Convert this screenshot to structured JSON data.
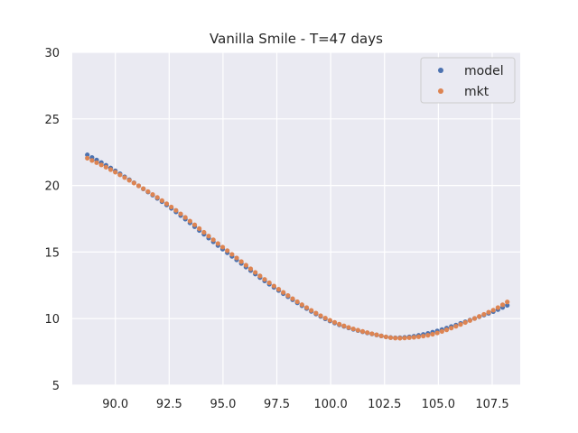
{
  "chart_data": {
    "type": "scatter",
    "title": "Vanilla Smile - T=47 days",
    "xlabel": "",
    "ylabel": "",
    "xlim": [
      88.0,
      108.8
    ],
    "ylim": [
      5,
      30
    ],
    "x_ticks": [
      90.0,
      92.5,
      95.0,
      97.5,
      100.0,
      102.5,
      105.0,
      107.5
    ],
    "x_tick_labels": [
      "90.0",
      "92.5",
      "95.0",
      "97.5",
      "100.0",
      "102.5",
      "105.0",
      "107.5"
    ],
    "y_ticks": [
      5,
      10,
      15,
      20,
      25,
      30
    ],
    "y_tick_labels": [
      "5",
      "10",
      "15",
      "20",
      "25",
      "30"
    ],
    "grid": true,
    "legend_position": "top-right",
    "x_range": [
      88.7,
      108.2
    ],
    "point_count": 91,
    "curve_description": "volatility smile (%) vs strike; model and mkt nearly coincide",
    "series": [
      {
        "name": "model",
        "color": "#4c72b0",
        "anchors": [
          [
            88.7,
            22.3
          ],
          [
            90.0,
            21.1
          ],
          [
            92.5,
            18.4
          ],
          [
            95.0,
            15.2
          ],
          [
            97.5,
            12.2
          ],
          [
            100.0,
            9.8
          ],
          [
            102.5,
            8.65
          ],
          [
            103.5,
            8.6
          ],
          [
            105.0,
            9.1
          ],
          [
            107.5,
            10.5
          ],
          [
            108.2,
            11.0
          ]
        ]
      },
      {
        "name": "mkt",
        "color": "#dd8452",
        "anchors": [
          [
            88.7,
            22.05
          ],
          [
            90.0,
            21.0
          ],
          [
            92.5,
            18.5
          ],
          [
            95.0,
            15.35
          ],
          [
            97.5,
            12.3
          ],
          [
            100.0,
            9.85
          ],
          [
            102.5,
            8.65
          ],
          [
            103.5,
            8.55
          ],
          [
            105.0,
            8.95
          ],
          [
            107.5,
            10.6
          ],
          [
            108.2,
            11.25
          ]
        ]
      }
    ]
  }
}
